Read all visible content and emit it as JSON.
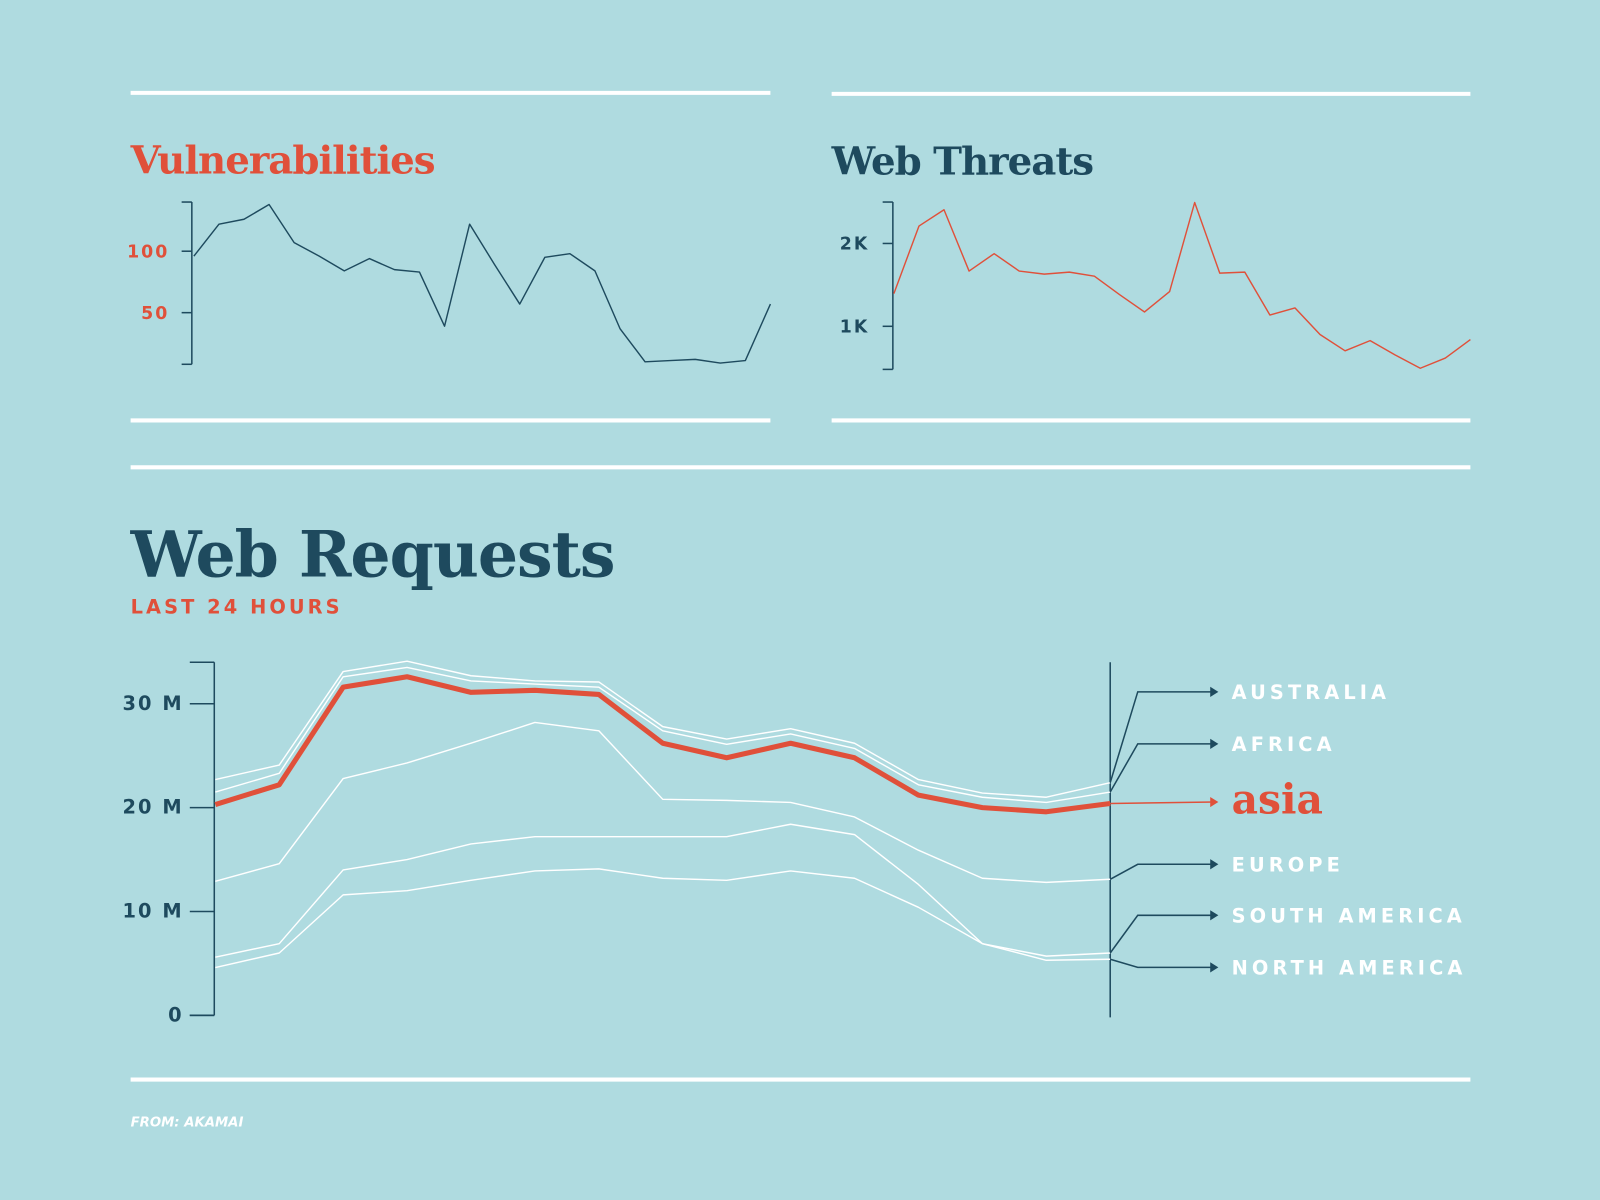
{
  "chart_data": [
    {
      "type": "line",
      "title": "Vulnerabilities",
      "color": "#1e4a5e",
      "values": [
        96,
        122,
        126,
        138,
        107,
        96,
        84,
        94,
        85,
        83,
        39,
        122,
        89,
        57,
        95,
        98,
        84,
        37,
        10,
        11,
        12,
        9,
        11,
        57
      ],
      "ylim": [
        8,
        140
      ],
      "yticks": [
        50,
        100
      ]
    },
    {
      "type": "line",
      "title": "Web Threats",
      "color": "#e0503a",
      "values": [
        1395,
        2210,
        2407,
        1667,
        1877,
        1667,
        1630,
        1654,
        1605,
        1383,
        1173,
        1420,
        2494,
        1642,
        1654,
        1136,
        1222,
        901,
        704,
        827,
        654,
        494,
        617,
        840
      ],
      "ylim": [
        480,
        2500
      ],
      "yticks": [
        {
          "value": 1000,
          "label": "1K"
        },
        {
          "value": 2000,
          "label": "2K"
        }
      ]
    },
    {
      "type": "line",
      "title": "Web Requests",
      "subtitle": "LAST 24 HOURS",
      "ylim": [
        0,
        34
      ],
      "yticks": [
        0,
        {
          "value": 10,
          "label": "10 M"
        },
        {
          "value": 20,
          "label": "20 M"
        },
        {
          "value": 30,
          "label": "30 M"
        }
      ],
      "series": [
        {
          "name": "AUSTRALIA",
          "color": "#ffffff",
          "values": [
            22.7,
            24.1,
            33.1,
            34.1,
            32.7,
            32.2,
            32.1,
            27.8,
            26.6,
            27.6,
            26.2,
            22.7,
            21.4,
            21.0,
            22.4
          ]
        },
        {
          "name": "AFRICA",
          "color": "#ffffff",
          "values": [
            21.5,
            23.3,
            32.6,
            33.5,
            32.2,
            31.9,
            31.6,
            27.4,
            26.1,
            27.1,
            25.7,
            22.2,
            21.0,
            20.5,
            21.5
          ]
        },
        {
          "name": "asia",
          "color": "#e0503a",
          "values": [
            20.3,
            22.2,
            31.6,
            32.6,
            31.1,
            31.3,
            30.9,
            26.2,
            24.8,
            26.2,
            24.8,
            21.2,
            20.0,
            19.6,
            20.4
          ]
        },
        {
          "name": "EUROPE",
          "color": "#ffffff",
          "values": [
            12.9,
            14.6,
            22.8,
            24.3,
            26.2,
            28.2,
            27.4,
            20.8,
            20.7,
            20.5,
            19.1,
            15.9,
            13.2,
            12.8,
            13.1
          ]
        },
        {
          "name": "SOUTH AMERICA",
          "color": "#ffffff",
          "values": [
            5.6,
            6.9,
            14.0,
            15.0,
            16.5,
            17.2,
            17.2,
            17.2,
            17.2,
            18.4,
            17.4,
            12.6,
            6.9,
            5.7,
            6.0
          ]
        },
        {
          "name": "NORTH AMERICA",
          "color": "#ffffff",
          "values": [
            4.6,
            6.0,
            11.6,
            12.0,
            13.0,
            13.9,
            14.1,
            13.2,
            13.0,
            13.9,
            13.2,
            10.4,
            6.9,
            5.3,
            5.4
          ]
        }
      ]
    }
  ],
  "source": "FROM: AKAMAI"
}
